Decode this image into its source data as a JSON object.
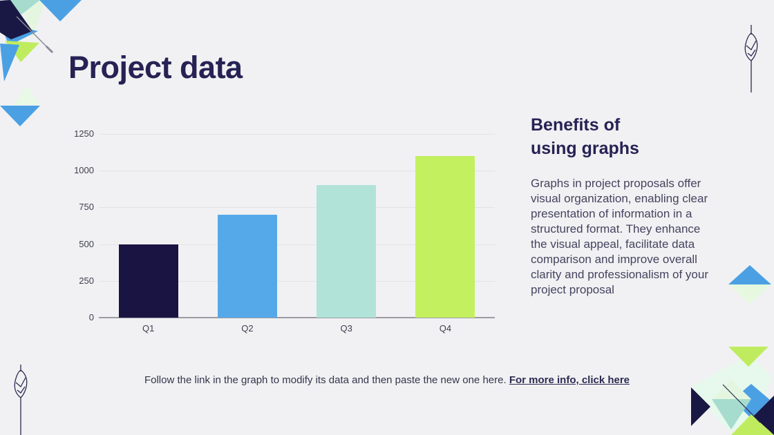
{
  "slide": {
    "title": "Project data",
    "background": "#f1f1f3"
  },
  "chart_data": {
    "type": "bar",
    "categories": [
      "Q1",
      "Q2",
      "Q3",
      "Q4"
    ],
    "values": [
      500,
      700,
      900,
      1100
    ],
    "bar_colors": [
      "#1a1442",
      "#55a9e9",
      "#b2e3d8",
      "#c3f05f"
    ],
    "title": "",
    "xlabel": "",
    "ylabel": "",
    "ylim": [
      0,
      1250
    ],
    "yticks": [
      0,
      250,
      500,
      750,
      1000,
      1250
    ],
    "grid": true,
    "legend": false
  },
  "benefits": {
    "heading_lines": [
      "Benefits of",
      "using graphs"
    ],
    "body": "Graphs in project proposals offer visual organization, enabling clear presentation of information in a structured format. They enhance the visual appeal, facilitate data comparison and improve overall clarity and professionalism of your project proposal"
  },
  "footer": {
    "text": "Follow the link in the graph to modify its data and then paste the new one here.",
    "link_label": "For more info, click here"
  },
  "palette": {
    "navy": "#191743",
    "blue": "#4ba0e4",
    "lime": "#bfec5f",
    "mint": "#e4f6e0",
    "teal": "#a6dccd",
    "text_navy": "#262254",
    "text_body": "#45435f"
  }
}
